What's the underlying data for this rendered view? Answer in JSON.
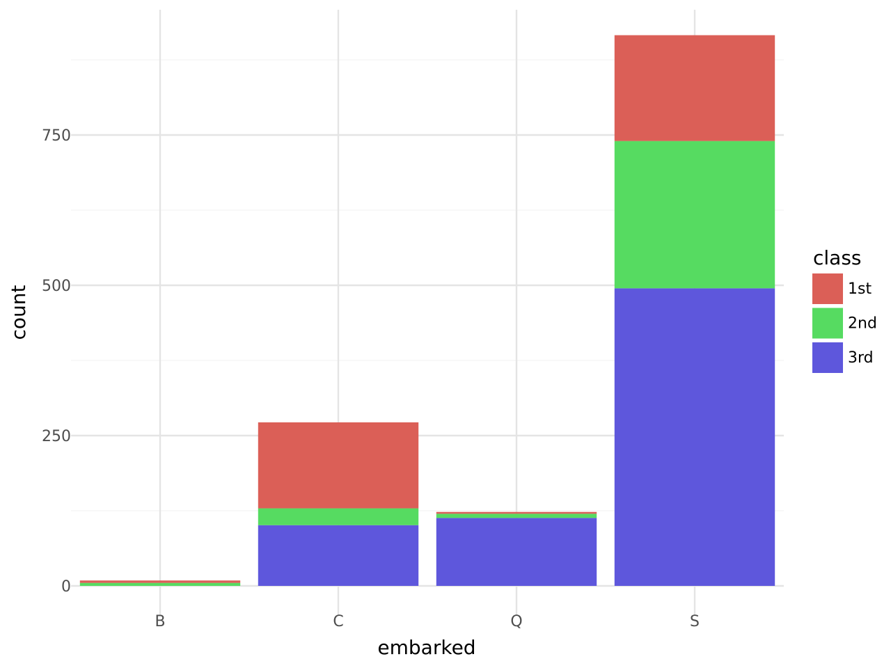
{
  "chart_data": {
    "type": "bar",
    "stacked": true,
    "title": "",
    "xlabel": "embarked",
    "ylabel": "count",
    "categories": [
      "B",
      "C",
      "Q",
      "S"
    ],
    "series": [
      {
        "name": "3rd",
        "values": [
          0,
          101,
          113,
          495
        ],
        "color": "#5e57dc"
      },
      {
        "name": "2nd",
        "values": [
          5,
          28,
          7,
          245
        ],
        "color": "#56db61"
      },
      {
        "name": "1st",
        "values": [
          4,
          143,
          3,
          176
        ],
        "color": "#db5f57"
      }
    ],
    "ylim": [
      -30,
      960
    ],
    "yticks": [
      0,
      250,
      500,
      750
    ],
    "grid": true,
    "legend": {
      "title": "class",
      "position": "right",
      "entries": [
        "1st",
        "2nd",
        "3rd"
      ]
    }
  }
}
